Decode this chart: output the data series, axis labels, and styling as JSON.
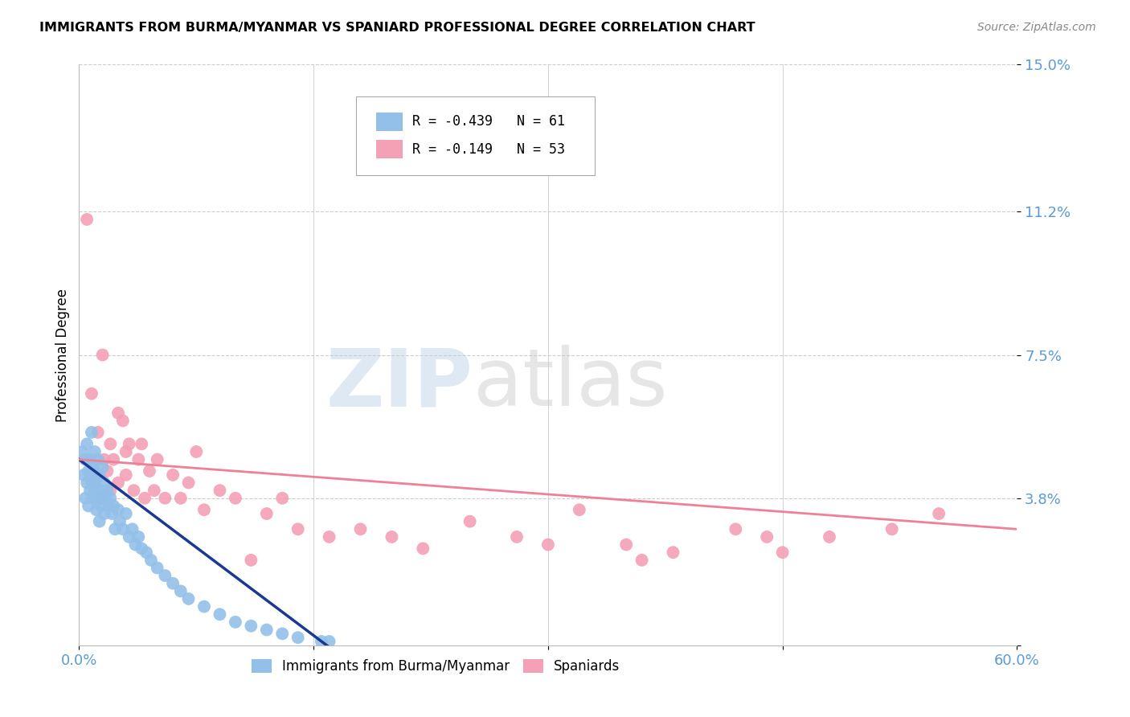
{
  "title": "IMMIGRANTS FROM BURMA/MYANMAR VS SPANIARD PROFESSIONAL DEGREE CORRELATION CHART",
  "source": "Source: ZipAtlas.com",
  "ylabel": "Professional Degree",
  "watermark_part1": "ZIP",
  "watermark_part2": "atlas",
  "xlim": [
    0.0,
    0.6
  ],
  "ylim": [
    0.0,
    0.15
  ],
  "ytick_vals": [
    0.0,
    0.038,
    0.075,
    0.112,
    0.15
  ],
  "yticklabels": [
    "",
    "3.8%",
    "7.5%",
    "11.2%",
    "15.0%"
  ],
  "xtick_vals": [
    0.0,
    0.15,
    0.3,
    0.45,
    0.6
  ],
  "xticklabels": [
    "0.0%",
    "",
    "",
    "",
    "60.0%"
  ],
  "blue_color": "#92C0E8",
  "pink_color": "#F4A0B5",
  "blue_line_color": "#1A3A8F",
  "pink_line_color": "#F08098",
  "tick_label_color": "#5B9BD5",
  "legend_R1": "-0.439",
  "legend_N1": "61",
  "legend_R2": "-0.149",
  "legend_N2": "53",
  "legend_label1": "Immigrants from Burma/Myanmar",
  "legend_label2": "Spaniards",
  "blue_scatter_x": [
    0.002,
    0.003,
    0.004,
    0.004,
    0.005,
    0.005,
    0.006,
    0.006,
    0.007,
    0.007,
    0.008,
    0.008,
    0.009,
    0.009,
    0.01,
    0.01,
    0.01,
    0.011,
    0.011,
    0.012,
    0.012,
    0.013,
    0.013,
    0.014,
    0.014,
    0.015,
    0.015,
    0.016,
    0.016,
    0.017,
    0.018,
    0.019,
    0.02,
    0.021,
    0.022,
    0.023,
    0.025,
    0.026,
    0.028,
    0.03,
    0.032,
    0.034,
    0.036,
    0.038,
    0.04,
    0.043,
    0.046,
    0.05,
    0.055,
    0.06,
    0.065,
    0.07,
    0.08,
    0.09,
    0.1,
    0.11,
    0.12,
    0.13,
    0.14,
    0.155,
    0.16
  ],
  "blue_scatter_y": [
    0.05,
    0.044,
    0.048,
    0.038,
    0.042,
    0.052,
    0.045,
    0.036,
    0.048,
    0.04,
    0.055,
    0.042,
    0.038,
    0.046,
    0.05,
    0.045,
    0.04,
    0.043,
    0.035,
    0.048,
    0.038,
    0.044,
    0.032,
    0.04,
    0.036,
    0.046,
    0.038,
    0.042,
    0.034,
    0.038,
    0.04,
    0.036,
    0.038,
    0.034,
    0.036,
    0.03,
    0.035,
    0.032,
    0.03,
    0.034,
    0.028,
    0.03,
    0.026,
    0.028,
    0.025,
    0.024,
    0.022,
    0.02,
    0.018,
    0.016,
    0.014,
    0.012,
    0.01,
    0.008,
    0.006,
    0.005,
    0.004,
    0.003,
    0.002,
    0.001,
    0.001
  ],
  "pink_scatter_x": [
    0.005,
    0.008,
    0.01,
    0.012,
    0.014,
    0.015,
    0.016,
    0.018,
    0.02,
    0.02,
    0.022,
    0.025,
    0.025,
    0.028,
    0.03,
    0.03,
    0.032,
    0.035,
    0.038,
    0.04,
    0.042,
    0.045,
    0.048,
    0.05,
    0.055,
    0.06,
    0.065,
    0.07,
    0.08,
    0.09,
    0.1,
    0.12,
    0.14,
    0.16,
    0.18,
    0.2,
    0.22,
    0.25,
    0.28,
    0.32,
    0.35,
    0.38,
    0.42,
    0.45,
    0.48,
    0.52,
    0.55,
    0.36,
    0.44,
    0.3,
    0.13,
    0.075,
    0.11
  ],
  "pink_scatter_y": [
    0.11,
    0.065,
    0.042,
    0.055,
    0.038,
    0.075,
    0.048,
    0.045,
    0.052,
    0.04,
    0.048,
    0.06,
    0.042,
    0.058,
    0.05,
    0.044,
    0.052,
    0.04,
    0.048,
    0.052,
    0.038,
    0.045,
    0.04,
    0.048,
    0.038,
    0.044,
    0.038,
    0.042,
    0.035,
    0.04,
    0.038,
    0.034,
    0.03,
    0.028,
    0.03,
    0.028,
    0.025,
    0.032,
    0.028,
    0.035,
    0.026,
    0.024,
    0.03,
    0.024,
    0.028,
    0.03,
    0.034,
    0.022,
    0.028,
    0.026,
    0.038,
    0.05,
    0.022
  ]
}
